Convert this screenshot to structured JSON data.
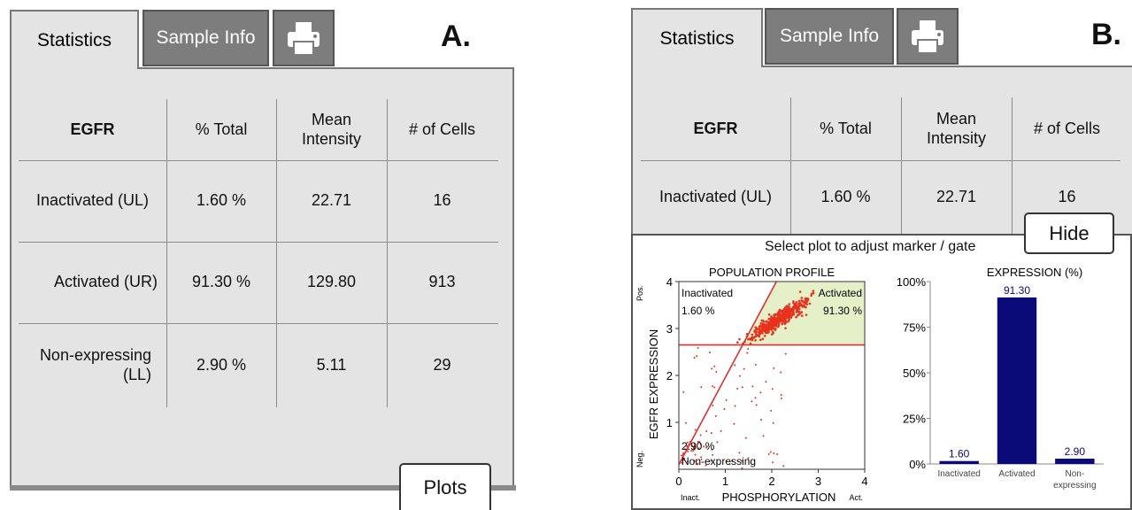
{
  "panelA": {
    "letter": "A.",
    "tabs": {
      "statistics": "Statistics",
      "sample_info": "Sample Info"
    },
    "printer_icon": "printer-icon",
    "headers": [
      "EGFR",
      "% Total",
      "Mean Intensity",
      "# of Cells"
    ],
    "rows": [
      [
        "Inactivated (UL)",
        "1.60 %",
        "22.71",
        "16"
      ],
      [
        "Activated (UR)",
        "91.30 %",
        "129.80",
        "913"
      ],
      [
        "Non-expressing (LL)",
        "2.90 %",
        "5.11",
        "29"
      ]
    ],
    "plots_button": "Plots"
  },
  "panelB": {
    "letter": "B.",
    "tabs": {
      "statistics": "Statistics",
      "sample_info": "Sample Info"
    },
    "printer_icon": "printer-icon",
    "headers": [
      "EGFR",
      "% Total",
      "Mean Intensity",
      "# of Cells"
    ],
    "rows": [
      [
        "Inactivated (UL)",
        "1.60 %",
        "22.71",
        "16"
      ]
    ],
    "hide_button": "Hide",
    "plot_instruction": "Select plot to adjust marker / gate"
  },
  "chart_data": [
    {
      "type": "scatter",
      "title": "POPULATION PROFILE",
      "xlabel": "PHOSPHORYLATION",
      "x_end_labels": [
        "Inact.",
        "Act."
      ],
      "ylabel": "EGFR EXPRESSION",
      "y_end_labels": [
        "Neg.",
        "Pos."
      ],
      "xlim": [
        0,
        4
      ],
      "ylim": [
        0,
        4
      ],
      "x_ticks": [
        "0",
        "1",
        "2",
        "3",
        "4"
      ],
      "y_ticks": [
        "1",
        "2",
        "3",
        "4"
      ],
      "gate_horizontal_y": 2.65,
      "gate_diagonal": [
        [
          0,
          0.1
        ],
        [
          2.1,
          4.0
        ]
      ],
      "quadrant_labels": {
        "upper_left": [
          "Inactivated",
          "1.60 %"
        ],
        "upper_right": [
          "Activated",
          "91.30 %"
        ],
        "lower_left": [
          "2.90 %",
          "Non-expressing"
        ]
      },
      "highlight_color": "#e6f0c8",
      "point_color": "#e8321e",
      "gate_color": "#e03030"
    },
    {
      "type": "bar",
      "title": "EXPRESSION (%)",
      "categories": [
        "Inactivated",
        "Activated",
        "Non-expressing"
      ],
      "values": [
        1.6,
        91.3,
        2.9
      ],
      "value_labels": [
        "1.60",
        "91.30",
        "2.90"
      ],
      "y_ticks": [
        "0%",
        "25%",
        "50%",
        "75%",
        "100%"
      ],
      "ylim": [
        0,
        100
      ],
      "bar_color": "#0a0a78"
    }
  ]
}
